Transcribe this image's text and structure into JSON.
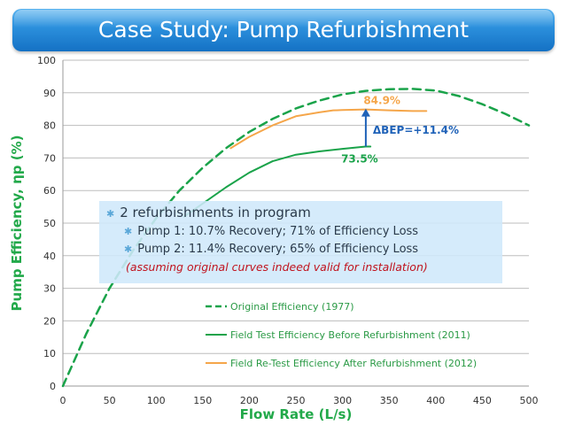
{
  "header": {
    "title": "Case Study: Pump Refurbishment"
  },
  "info": {
    "line1": "2 refurbishments in program",
    "line2": "Pump 1:  10.7%  Recovery; 71% of Efficiency Loss",
    "line3": "Pump 2:  11.4%  Recovery; 65% of Efficiency Loss",
    "line4": "(assuming original curves indeed valid for installation)"
  },
  "chart_data": {
    "type": "line",
    "xlabel": "Flow Rate (L/s)",
    "ylabel": "Pump Efficiency, ηp (%)",
    "xlim": [
      0,
      500
    ],
    "ylim": [
      0,
      100
    ],
    "xticks": [
      0,
      50,
      100,
      150,
      200,
      250,
      300,
      350,
      400,
      450,
      500
    ],
    "yticks": [
      0,
      10,
      20,
      30,
      40,
      50,
      60,
      70,
      80,
      90,
      100
    ],
    "grid": "horizontal",
    "colors": {
      "original": "#1aa34a",
      "before": "#1aa34a",
      "after": "#f5a64a",
      "annotation_arrow": "#1f62b8",
      "bep_text": "#1f62b8"
    },
    "series": [
      {
        "name": "Original Efficiency (1977)",
        "style": "dashed",
        "x": [
          0,
          25,
          50,
          75,
          100,
          125,
          150,
          175,
          200,
          225,
          250,
          275,
          300,
          325,
          350,
          375,
          400,
          425,
          450,
          475,
          500
        ],
        "y": [
          0,
          16,
          30,
          41.5,
          51.5,
          60,
          67,
          73,
          78,
          82,
          85.2,
          87.6,
          89.5,
          90.6,
          91.1,
          91.2,
          90.7,
          89,
          86.5,
          83.5,
          80
        ]
      },
      {
        "name": "Field Test Efficiency Before Refurbishment (2011)",
        "style": "solid",
        "x": [
          130,
          150,
          175,
          200,
          225,
          250,
          275,
          300,
          325,
          330
        ],
        "y": [
          52,
          56,
          61,
          65.5,
          69,
          71,
          72,
          72.8,
          73.5,
          73.5
        ]
      },
      {
        "name": "Field Re-Test Efficiency After Refurbishment (2012)",
        "style": "solid",
        "x": [
          180,
          200,
          225,
          250,
          275,
          290,
          300,
          325,
          350,
          375,
          390
        ],
        "y": [
          73,
          76.5,
          80,
          82.8,
          84,
          84.6,
          84.7,
          84.9,
          84.6,
          84.4,
          84.4
        ]
      }
    ],
    "annotations": [
      {
        "text": "84.9%",
        "x": 330,
        "y": 84.9
      },
      {
        "text": "73.5%",
        "x": 325,
        "y": 73.5
      },
      {
        "text": "ΔBEP=+11.4%",
        "x": 325,
        "y": 78.5
      }
    ],
    "arrow": {
      "x": 325,
      "y_from": 73.5,
      "y_to": 84.9
    },
    "legend": "bottom-right"
  }
}
